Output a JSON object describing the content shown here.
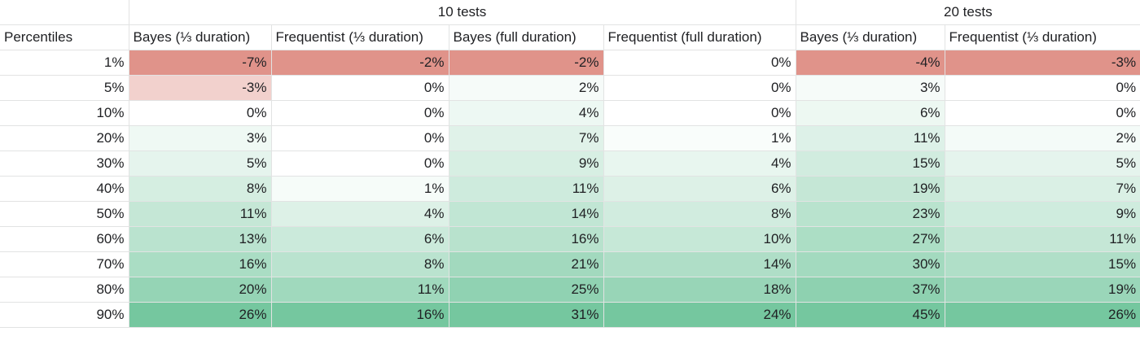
{
  "groups": [
    {
      "label": "10 tests"
    },
    {
      "label": "20 tests"
    }
  ],
  "columns": [
    "Percentiles",
    "Bayes (⅓ duration)",
    "Frequentist (⅓ duration)",
    "Bayes (full duration)",
    "Frequentist (full duration)",
    "Bayes (⅓ duration)",
    "Frequentist (⅓ duration)"
  ],
  "rows": [
    {
      "p": "1%",
      "cells": [
        "-7%",
        "-2%",
        "-2%",
        "0%",
        "-4%",
        "-3%"
      ],
      "nums": [
        -7,
        -2,
        -2,
        0,
        -4,
        -3
      ]
    },
    {
      "p": "5%",
      "cells": [
        "-3%",
        "0%",
        "2%",
        "0%",
        "3%",
        "0%"
      ],
      "nums": [
        -3,
        0,
        2,
        0,
        3,
        0
      ]
    },
    {
      "p": "10%",
      "cells": [
        "0%",
        "0%",
        "4%",
        "0%",
        "6%",
        "0%"
      ],
      "nums": [
        0,
        0,
        4,
        0,
        6,
        0
      ]
    },
    {
      "p": "20%",
      "cells": [
        "3%",
        "0%",
        "7%",
        "1%",
        "11%",
        "2%"
      ],
      "nums": [
        3,
        0,
        7,
        1,
        11,
        2
      ]
    },
    {
      "p": "30%",
      "cells": [
        "5%",
        "0%",
        "9%",
        "4%",
        "15%",
        "5%"
      ],
      "nums": [
        5,
        0,
        9,
        4,
        15,
        5
      ]
    },
    {
      "p": "40%",
      "cells": [
        "8%",
        "1%",
        "11%",
        "6%",
        "19%",
        "7%"
      ],
      "nums": [
        8,
        1,
        11,
        6,
        19,
        7
      ]
    },
    {
      "p": "50%",
      "cells": [
        "11%",
        "4%",
        "14%",
        "8%",
        "23%",
        "9%"
      ],
      "nums": [
        11,
        4,
        14,
        8,
        23,
        9
      ]
    },
    {
      "p": "60%",
      "cells": [
        "13%",
        "6%",
        "16%",
        "10%",
        "27%",
        "11%"
      ],
      "nums": [
        13,
        6,
        16,
        10,
        27,
        11
      ]
    },
    {
      "p": "70%",
      "cells": [
        "16%",
        "8%",
        "21%",
        "14%",
        "30%",
        "15%"
      ],
      "nums": [
        16,
        8,
        21,
        14,
        30,
        15
      ]
    },
    {
      "p": "80%",
      "cells": [
        "20%",
        "11%",
        "25%",
        "18%",
        "37%",
        "19%"
      ],
      "nums": [
        20,
        11,
        25,
        18,
        37,
        19
      ]
    },
    {
      "p": "90%",
      "cells": [
        "26%",
        "16%",
        "31%",
        "24%",
        "45%",
        "26%"
      ],
      "nums": [
        26,
        16,
        31,
        24,
        45,
        26
      ]
    }
  ],
  "colors": {
    "negative_max": "#e0938a",
    "positive_max": "#57bb8a",
    "neutral": "#ffffff"
  }
}
